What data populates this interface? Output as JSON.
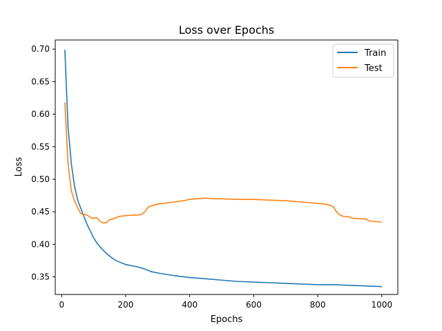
{
  "chart_data": {
    "type": "line",
    "title": "Loss over Epochs",
    "xlabel": "Epochs",
    "ylabel": "Loss",
    "xlim": [
      -20,
      1050
    ],
    "ylim": [
      0.323,
      0.714
    ],
    "xticks": [
      0,
      200,
      400,
      600,
      800,
      1000
    ],
    "yticks": [
      0.35,
      0.4,
      0.45,
      0.5,
      0.55,
      0.6,
      0.65,
      0.7
    ],
    "xtick_labels": [
      "0",
      "200",
      "400",
      "600",
      "800",
      "1000"
    ],
    "ytick_labels": [
      "0.35",
      "0.40",
      "0.45",
      "0.50",
      "0.55",
      "0.60",
      "0.65",
      "0.70"
    ],
    "grid": false,
    "legend_position": "top-right",
    "series": [
      {
        "name": "Train",
        "color": "#1f77b4",
        "x": [
          10,
          20,
          30,
          40,
          50,
          60,
          70,
          80,
          90,
          100,
          110,
          120,
          130,
          140,
          150,
          160,
          170,
          180,
          190,
          200,
          220,
          240,
          260,
          280,
          300,
          350,
          400,
          450,
          500,
          550,
          600,
          650,
          700,
          750,
          800,
          850,
          900,
          950,
          1000
        ],
        "y": [
          0.699,
          0.58,
          0.525,
          0.49,
          0.468,
          0.455,
          0.442,
          0.43,
          0.42,
          0.41,
          0.402,
          0.396,
          0.391,
          0.386,
          0.382,
          0.378,
          0.375,
          0.373,
          0.371,
          0.369,
          0.367,
          0.365,
          0.362,
          0.358,
          0.356,
          0.352,
          0.349,
          0.347,
          0.345,
          0.343,
          0.342,
          0.341,
          0.34,
          0.339,
          0.338,
          0.338,
          0.337,
          0.336,
          0.335
        ]
      },
      {
        "name": "Test",
        "color": "#ff7f0e",
        "x": [
          10,
          20,
          30,
          40,
          50,
          60,
          70,
          80,
          90,
          100,
          110,
          120,
          130,
          140,
          150,
          160,
          170,
          180,
          200,
          220,
          240,
          250,
          260,
          270,
          280,
          300,
          320,
          350,
          380,
          400,
          420,
          450,
          480,
          500,
          550,
          600,
          650,
          700,
          750,
          800,
          820,
          840,
          850,
          860,
          870,
          880,
          900,
          910,
          950,
          960,
          1000
        ],
        "y": [
          0.618,
          0.524,
          0.483,
          0.467,
          0.456,
          0.447,
          0.446,
          0.445,
          0.441,
          0.44,
          0.441,
          0.435,
          0.433,
          0.433,
          0.438,
          0.439,
          0.441,
          0.443,
          0.444,
          0.445,
          0.445,
          0.446,
          0.45,
          0.457,
          0.459,
          0.462,
          0.463,
          0.465,
          0.467,
          0.469,
          0.47,
          0.471,
          0.47,
          0.47,
          0.469,
          0.469,
          0.468,
          0.467,
          0.465,
          0.463,
          0.462,
          0.46,
          0.457,
          0.449,
          0.445,
          0.443,
          0.442,
          0.44,
          0.439,
          0.436,
          0.434
        ]
      }
    ]
  }
}
